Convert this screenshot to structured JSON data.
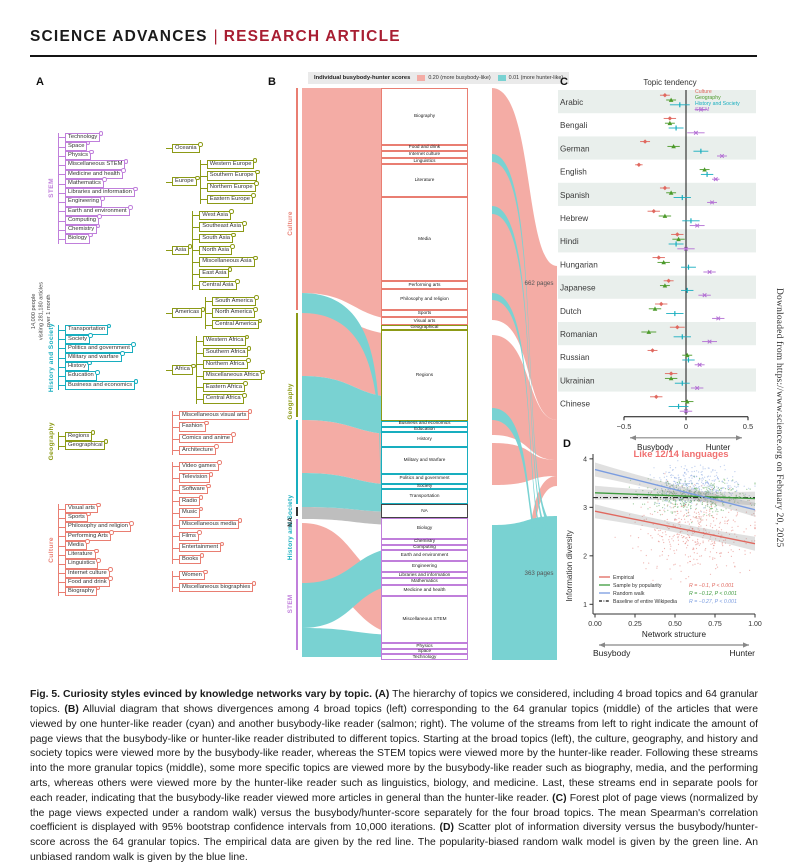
{
  "header": {
    "brand": "SCIENCE ADVANCES",
    "separator": "|",
    "article_type": "RESEARCH ARTICLE"
  },
  "sidebar_note": "Downloaded from https://www.science.org on February 20, 2025",
  "panels": {
    "a": "A",
    "b": "B",
    "c": "C",
    "d": "D"
  },
  "panel_a": {
    "root_label": "14,000 people\nvisiting 281,180 articles\nover 1 month",
    "groups": [
      {
        "name": "STEM",
        "color": "#c07fdb",
        "items": [
          "Technology",
          "Space",
          "Physics",
          "Miscellaneous STEM",
          "Medicine and health",
          "Mathematics",
          "Libraries and information",
          "Engineering",
          "Earth and environment",
          "Computing",
          "Chemistry",
          "Biology"
        ]
      },
      {
        "name": "History and Society",
        "color": "#18aebf",
        "items": [
          "Transportation",
          "Society",
          "Politics and government",
          "Military and warfare",
          "History",
          "Education",
          "Business and economics"
        ]
      },
      {
        "name": "Geography",
        "color": "#8c9a16",
        "items": [
          "Regions",
          "Geographical"
        ]
      },
      {
        "name": "Culture",
        "color": "#e97e72",
        "items": [
          "Visual arts",
          "Sports",
          "Philosophy and religion",
          "Performing Arts",
          "Media",
          "Literature",
          "Linguistics",
          "Internet culture",
          "Food and drink",
          "Biography"
        ]
      }
    ],
    "subgroups": [
      {
        "parent": "Oceania",
        "color": "#8c9a16",
        "items": []
      },
      {
        "parent": "Europe",
        "color": "#8c9a16",
        "items": [
          "Western Europe",
          "Southern Europe",
          "Northern Europe",
          "Eastern Europe"
        ]
      },
      {
        "parent": "Asia",
        "color": "#8c9a16",
        "items": [
          "West Asia",
          "Southeast Asia",
          "South Asia",
          "North Asia",
          "Miscellaneous Asia",
          "East Asia",
          "Central Asia"
        ]
      },
      {
        "parent": "Americas",
        "color": "#8c9a16",
        "items": [
          "South America",
          "North America",
          "Central America"
        ]
      },
      {
        "parent": "Africa",
        "color": "#8c9a16",
        "items": [
          "Western Africa",
          "Southern Africa",
          "Northern Africa",
          "Miscellaneous Africa",
          "Eastern Africa",
          "Central Africa"
        ]
      },
      {
        "parent": "",
        "color": "#e97e72",
        "items": [
          "Miscellaneous visual arts",
          "Fashion",
          "Comics and anime",
          "Architecture"
        ]
      },
      {
        "parent": "",
        "color": "#e97e72",
        "items": [
          "Video games",
          "Television",
          "Software",
          "Radio",
          "Music",
          "Miscellaneous media",
          "Films",
          "Entertainment",
          "Books"
        ]
      },
      {
        "parent": "",
        "color": "#e97e72",
        "items": [
          "Women",
          "Miscellaneous biographies"
        ]
      }
    ]
  },
  "panel_b": {
    "legend_title": "Individual busybody-hunter scores",
    "legend_items": [
      {
        "label": "0.20 (more busybody-like)",
        "color": "#f4aca5"
      },
      {
        "label": "0.01 (more hunter-like)",
        "color": "#79d2d2"
      }
    ],
    "left_axis": [
      {
        "label": "Culture",
        "color": "#e97e72",
        "size": 225
      },
      {
        "label": "Geography",
        "color": "#8c9a16",
        "size": 107
      },
      {
        "label": "History and Society",
        "color": "#18aebf",
        "size": 87
      },
      {
        "label": "NA",
        "color": "#333333",
        "size": 12
      },
      {
        "label": "STEM",
        "color": "#c07fdb",
        "size": 134
      }
    ],
    "group_colors": {
      "Culture": "#e97e72",
      "Geography": "#8c9a16",
      "HistorySociety": "#18aebf",
      "NA": "#444444",
      "STEM": "#c07fdb"
    },
    "nodes": [
      {
        "label": "Biography",
        "group": "Culture",
        "size": 60
      },
      {
        "label": "Food and drink",
        "group": "Culture",
        "size": 5
      },
      {
        "label": "Internet culture",
        "group": "Culture",
        "size": 5
      },
      {
        "label": "Linguistics",
        "group": "Culture",
        "size": 5
      },
      {
        "label": "Literature",
        "group": "Culture",
        "size": 34
      },
      {
        "label": "Media",
        "group": "Culture",
        "size": 90
      },
      {
        "label": "Performing arts",
        "group": "Culture",
        "size": 7
      },
      {
        "label": "Philosophy and religion",
        "group": "Culture",
        "size": 21
      },
      {
        "label": "Sports",
        "group": "Culture",
        "size": 5
      },
      {
        "label": "Visual arts",
        "group": "Culture",
        "size": 7
      },
      {
        "label": "Geographical",
        "group": "Geography",
        "size": 3
      },
      {
        "label": "Regions",
        "group": "Geography",
        "size": 98
      },
      {
        "label": "Business and economics",
        "group": "HistorySociety",
        "size": 4
      },
      {
        "label": "Education",
        "group": "HistorySociety",
        "size": 4
      },
      {
        "label": "History",
        "group": "HistorySociety",
        "size": 14
      },
      {
        "label": "Military and Warfare",
        "group": "HistorySociety",
        "size": 27
      },
      {
        "label": "Politics and government",
        "group": "HistorySociety",
        "size": 9
      },
      {
        "label": "Society",
        "group": "HistorySociety",
        "size": 4
      },
      {
        "label": "Transportation",
        "group": "HistorySociety",
        "size": 14
      },
      {
        "label": "NA",
        "group": "NA",
        "size": 13
      },
      {
        "label": "Biology",
        "group": "STEM",
        "size": 21
      },
      {
        "label": "Chemistry",
        "group": "STEM",
        "size": 4
      },
      {
        "label": "Computing",
        "group": "STEM",
        "size": 4
      },
      {
        "label": "Earth and environment",
        "group": "STEM",
        "size": 10
      },
      {
        "label": "Engineering",
        "group": "STEM",
        "size": 10
      },
      {
        "label": "Libraries and information",
        "group": "STEM",
        "size": 4
      },
      {
        "label": "Mathematics",
        "group": "STEM",
        "size": 5
      },
      {
        "label": "Medicine and health",
        "group": "STEM",
        "size": 10
      },
      {
        "label": "Miscellaneous STEM",
        "group": "STEM",
        "size": 50
      },
      {
        "label": "Physics",
        "group": "STEM",
        "size": 4
      },
      {
        "label": "Space",
        "group": "STEM",
        "size": 4
      },
      {
        "label": "Technology",
        "group": "STEM",
        "size": 4
      }
    ],
    "right_labels": [
      {
        "text": "662 pages"
      },
      {
        "text": "363 pages"
      }
    ]
  },
  "chart_data": [
    {
      "panel": "C",
      "type": "forest",
      "title": "Topic tendency",
      "series": [
        "Culture",
        "Geography",
        "History and Society",
        "STEM"
      ],
      "series_colors": [
        "#e0685f",
        "#4c9a2a",
        "#18aebf",
        "#b36fd4"
      ],
      "xlim": [
        -0.5,
        0.5
      ],
      "xticks": [
        -0.5,
        0,
        0.5
      ],
      "xtick_labels": [
        "−0.5",
        "0",
        "0.5"
      ],
      "axis_left_label": "Busybody",
      "axis_right_label": "Hunter",
      "rows": [
        {
          "language": "Arabic",
          "values": [
            -0.17,
            -0.12,
            -0.05,
            0.12
          ],
          "ci": [
            0.04,
            0.04,
            0.08,
            0.05
          ]
        },
        {
          "language": "Bengali",
          "values": [
            -0.13,
            -0.13,
            -0.08,
            0.08
          ],
          "ci": [
            0.05,
            0.04,
            0.06,
            0.07
          ]
        },
        {
          "language": "German",
          "values": [
            -0.33,
            -0.1,
            0.12,
            0.29
          ],
          "ci": [
            0.04,
            0.05,
            0.06,
            0.04
          ]
        },
        {
          "language": "English",
          "values": [
            -0.38,
            0.15,
            0.17,
            0.24
          ],
          "ci": [
            0.03,
            0.04,
            0.05,
            0.03
          ]
        },
        {
          "language": "Spanish",
          "values": [
            -0.17,
            -0.12,
            -0.03,
            0.21
          ],
          "ci": [
            0.04,
            0.04,
            0.07,
            0.04
          ]
        },
        {
          "language": "Hebrew",
          "values": [
            -0.26,
            -0.17,
            0.04,
            0.09
          ],
          "ci": [
            0.05,
            0.05,
            0.07,
            0.06
          ]
        },
        {
          "language": "Hindi",
          "values": [
            -0.07,
            -0.06,
            -0.08,
            0.0
          ],
          "ci": [
            0.05,
            0.05,
            0.06,
            0.07
          ]
        },
        {
          "language": "Hungarian",
          "values": [
            -0.22,
            -0.18,
            0.02,
            0.19
          ],
          "ci": [
            0.05,
            0.05,
            0.06,
            0.05
          ]
        },
        {
          "language": "Japanese",
          "values": [
            -0.14,
            -0.17,
            0.01,
            0.15
          ],
          "ci": [
            0.04,
            0.04,
            0.05,
            0.05
          ]
        },
        {
          "language": "Dutch",
          "values": [
            -0.2,
            -0.25,
            -0.09,
            0.26
          ],
          "ci": [
            0.05,
            0.05,
            0.07,
            0.05
          ]
        },
        {
          "language": "Romanian",
          "values": [
            -0.07,
            -0.3,
            -0.03,
            0.19
          ],
          "ci": [
            0.06,
            0.06,
            0.07,
            0.06
          ]
        },
        {
          "language": "Russian",
          "values": [
            -0.27,
            0.01,
            0.02,
            0.11
          ],
          "ci": [
            0.04,
            0.04,
            0.05,
            0.04
          ]
        },
        {
          "language": "Ukrainian",
          "values": [
            -0.12,
            -0.12,
            -0.03,
            0.09
          ],
          "ci": [
            0.05,
            0.05,
            0.06,
            0.05
          ]
        },
        {
          "language": "Chinese",
          "values": [
            -0.24,
            0.01,
            -0.06,
            0.0
          ],
          "ci": [
            0.05,
            0.05,
            0.08,
            0.05
          ]
        }
      ]
    },
    {
      "panel": "D",
      "type": "scatter",
      "annotation": "Like 12/14 languages",
      "annotation_color": "#f07070",
      "ylabel": "Information diversity",
      "xlabel": "Network structure",
      "axis_left_label": "Busybody",
      "axis_right_label": "Hunter",
      "xlim": [
        0,
        1
      ],
      "ylim": [
        0.8,
        4.1
      ],
      "xticks": [
        0,
        0.25,
        0.5,
        0.75,
        1
      ],
      "xtick_labels": [
        "0.00",
        "0.25",
        "0.50",
        "0.75",
        "1.00"
      ],
      "yticks": [
        1,
        2,
        3,
        4
      ],
      "baseline_y": 3.2,
      "legend": [
        {
          "label": "Empirical",
          "color": "#e0685f",
          "style": "solid"
        },
        {
          "label": "Sample by popularity",
          "color": "#3d9a3d",
          "style": "solid"
        },
        {
          "label": "Random walk",
          "color": "#7a9ce0",
          "style": "solid"
        },
        {
          "label": "Baseline of entire Wikipedia",
          "color": "#111111",
          "style": "dashdot"
        }
      ],
      "stats": [
        {
          "text": "R = −0.1, P < 0.001",
          "color": "#e0685f"
        },
        {
          "text": "R = −0.12, P < 0.001",
          "color": "#3d9a3d"
        },
        {
          "text": "R = −0.27, P < 0.001",
          "color": "#7a9ce0"
        }
      ],
      "lines": [
        {
          "name": "Empirical",
          "color": "#e0685f",
          "x0": 0,
          "y0": 2.92,
          "x1": 1,
          "y1": 2.25
        },
        {
          "name": "Sample by popularity",
          "color": "#3d9a3d",
          "x0": 0,
          "y0": 3.3,
          "x1": 1,
          "y1": 3.18
        },
        {
          "name": "Random walk",
          "color": "#7a9ce0",
          "x0": 0,
          "y0": 3.78,
          "x1": 1,
          "y1": 2.95
        }
      ],
      "clusters": [
        {
          "name": "Random walk",
          "color": "#7a9ce0",
          "cx": 0.6,
          "cy": 3.42,
          "sx": 0.15,
          "sy": 0.2,
          "n": 420
        },
        {
          "name": "Sample by popularity",
          "color": "#3d9a3d",
          "cx": 0.62,
          "cy": 3.22,
          "sx": 0.16,
          "sy": 0.17,
          "n": 420
        },
        {
          "name": "Empirical",
          "color": "#e0685f",
          "cx": 0.63,
          "cy": 2.5,
          "sx": 0.17,
          "sy": 0.42,
          "n": 420
        }
      ]
    }
  ],
  "caption": {
    "segments": [
      {
        "b": true,
        "t": "Fig. 5. Curiosity styles evinced by knowledge networks vary by topic. "
      },
      {
        "b": true,
        "t": "(A)"
      },
      {
        "b": false,
        "t": " The hierarchy of topics we considered, including 4 broad topics and 64 granular topics. "
      },
      {
        "b": true,
        "t": "(B)"
      },
      {
        "b": false,
        "t": " Alluvial diagram that shows divergences among 4 broad topics (left) corresponding to the 64 granular topics (middle) of the articles that were viewed by one hunter-like reader (cyan) and another busybody-like reader (salmon; right). The volume of the streams from left to right indicate the amount of page views that the busybody-like or hunter-like reader distributed to different topics. Starting at the broad topics (left), the culture, geography, and history and society topics were viewed more by the busybody-like reader, whereas the STEM topics were viewed more by the hunter-like reader. Following these streams into the more granular topics (middle), some more specific topics are viewed more by the busybody-like reader such as biography, media, and the performing arts, whereas others were viewed more by the hunter-like reader such as linguistics, biology, and medicine. Last, these streams end in separate pools for each reader, indicating that the busybody-like reader viewed more articles in general than the hunter-like reader. "
      },
      {
        "b": true,
        "t": "(C)"
      },
      {
        "b": false,
        "t": " Forest plot of page views (normalized by the page views expected under a random walk) versus the busybody/hunter-score separately for the four broad topics. The mean Spearman's correlation coefficient is displayed with 95% bootstrap confidence intervals from 10,000 iterations. "
      },
      {
        "b": true,
        "t": "(D)"
      },
      {
        "b": false,
        "t": " Scatter plot of information diversity versus the busybody/hunter-score across the 64 granular topics. The empirical data are given by the red line. The popularity-biased random walk model is given by the green line. An unbiased random walk is given by the blue line."
      }
    ]
  }
}
